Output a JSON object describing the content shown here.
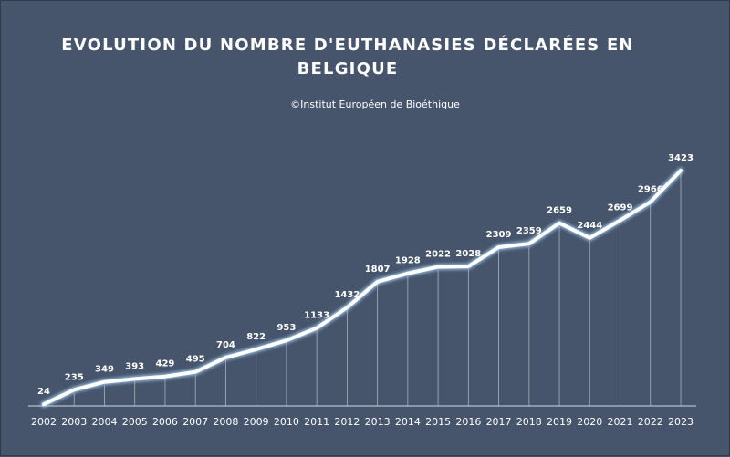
{
  "colors": {
    "background": "#46556b",
    "line": "#ffffff",
    "line_glow": "#9fc3ea",
    "drop_line": "#c8d2de",
    "text": "#ffffff"
  },
  "chart_data": {
    "type": "line",
    "title": "EVOLUTION DU NOMBRE D'EUTHANASIES DÉCLARÉES EN BELGIQUE",
    "subtitle": "©Institut Européen de Bioéthique",
    "xlabel": "",
    "ylabel": "",
    "grid": false,
    "legend": "none",
    "x": [
      "2002",
      "2003",
      "2004",
      "2005",
      "2006",
      "2007",
      "2008",
      "2009",
      "2010",
      "2011",
      "2012",
      "2013",
      "2014",
      "2015",
      "2016",
      "2017",
      "2018",
      "2019",
      "2020",
      "2021",
      "2022",
      "2023"
    ],
    "series": [
      {
        "values": [
          24,
          235,
          349,
          393,
          429,
          495,
          704,
          822,
          953,
          1133,
          1432,
          1807,
          1928,
          2022,
          2028,
          2309,
          2359,
          2659,
          2444,
          2699,
          2966,
          3423
        ]
      }
    ],
    "ylim": [
      0,
      3423
    ],
    "data_labels": true,
    "drop_lines": true
  }
}
